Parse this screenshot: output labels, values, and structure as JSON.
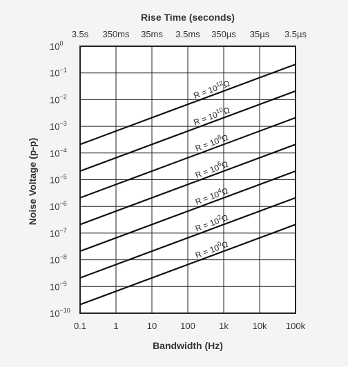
{
  "chart_data": {
    "type": "line",
    "title": "Rise Time (seconds)",
    "xlabel": "Bandwidth (Hz)",
    "ylabel": "Noise Voltage (p-p)",
    "x_scale": "log",
    "y_scale": "log",
    "xlim": [
      0.1,
      100000
    ],
    "ylim": [
      1e-10,
      1
    ],
    "grid": true,
    "x_ticks": [
      0.1,
      1,
      10,
      100,
      1000,
      10000,
      100000
    ],
    "x_tick_labels": [
      "0.1",
      "1",
      "10",
      "100",
      "1k",
      "10k",
      "100k"
    ],
    "top_ticks": [
      0.1,
      1,
      10,
      100,
      1000,
      10000,
      100000
    ],
    "top_tick_labels": [
      "3.5s",
      "350ms",
      "35ms",
      "3.5ms",
      "350µs",
      "35µs",
      "3.5µs"
    ],
    "y_ticks": [
      1,
      0.1,
      0.01,
      0.001,
      0.0001,
      1e-05,
      1e-06,
      1e-07,
      1e-08,
      1e-09,
      1e-10
    ],
    "y_tick_labels": [
      {
        "base": "10",
        "exp": "0"
      },
      {
        "base": "10",
        "exp": "−1"
      },
      {
        "base": "10",
        "exp": "−2"
      },
      {
        "base": "10",
        "exp": "−3"
      },
      {
        "base": "10",
        "exp": "−4"
      },
      {
        "base": "10",
        "exp": "−5"
      },
      {
        "base": "10",
        "exp": "−6"
      },
      {
        "base": "10",
        "exp": "−7"
      },
      {
        "base": "10",
        "exp": "−8"
      },
      {
        "base": "10",
        "exp": "−9"
      },
      {
        "base": "10",
        "exp": "−10"
      }
    ],
    "series": [
      {
        "label": {
          "prefix": "R = 10",
          "exp": "12",
          "suffix": "Ω"
        },
        "x": [
          0.1,
          100000
        ],
        "y": [
          0.00021,
          0.21
        ]
      },
      {
        "label": {
          "prefix": "R = 10",
          "exp": "10",
          "suffix": "Ω"
        },
        "x": [
          0.1,
          100000
        ],
        "y": [
          2.1e-05,
          0.021
        ]
      },
      {
        "label": {
          "prefix": "R = 10",
          "exp": "8",
          "suffix": "Ω"
        },
        "x": [
          0.1,
          100000
        ],
        "y": [
          2.1e-06,
          0.0021
        ]
      },
      {
        "label": {
          "prefix": "R = 10",
          "exp": "6",
          "suffix": "Ω"
        },
        "x": [
          0.1,
          100000
        ],
        "y": [
          2.1e-07,
          0.00021
        ]
      },
      {
        "label": {
          "prefix": "R = 10",
          "exp": "4",
          "suffix": "Ω"
        },
        "x": [
          0.1,
          100000
        ],
        "y": [
          2.1e-08,
          2.1e-05
        ]
      },
      {
        "label": {
          "prefix": "R = 10",
          "exp": "2",
          "suffix": "Ω"
        },
        "x": [
          0.1,
          100000
        ],
        "y": [
          2.1e-09,
          2.1e-06
        ]
      },
      {
        "label": {
          "prefix": "R = 10",
          "exp": "0",
          "suffix": "Ω"
        },
        "x": [
          0.1,
          100000
        ],
        "y": [
          2.1e-10,
          2.1e-07
        ]
      }
    ],
    "colors": {
      "background": "#f4f4f3",
      "plot_background": "#ffffff",
      "grid": "#222222",
      "line": "#111111",
      "text": "#333333"
    }
  }
}
